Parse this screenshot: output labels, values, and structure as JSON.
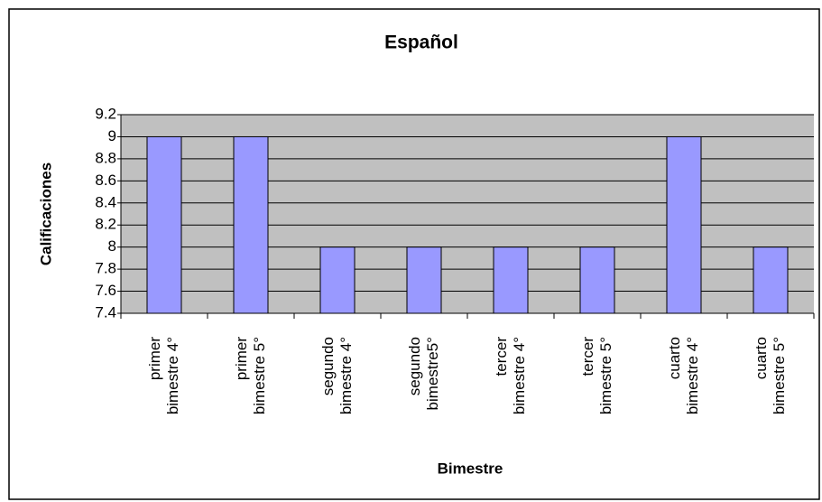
{
  "chart_data": {
    "type": "bar",
    "title": "Español",
    "x_label": "Bimestre",
    "y_label": "Calificaciones",
    "categories": [
      "primer bimestre 4°",
      "primer bimestre 5°",
      "segundo bimestre 4°",
      "segundo bimestre5°",
      "tercer bimestre 4°",
      "tercer bimestre 5°",
      "cuarto bimestre 4°",
      "cuarto bimestre 5°"
    ],
    "values": [
      9,
      9,
      8,
      8,
      8,
      8,
      9,
      8
    ],
    "color": "#9999ff",
    "ylim": [
      7.4,
      9.2
    ],
    "yticks": [
      7.4,
      7.6,
      7.8,
      8,
      8.2,
      8.4,
      8.6,
      8.8,
      9,
      9.2
    ],
    "grid": true
  }
}
